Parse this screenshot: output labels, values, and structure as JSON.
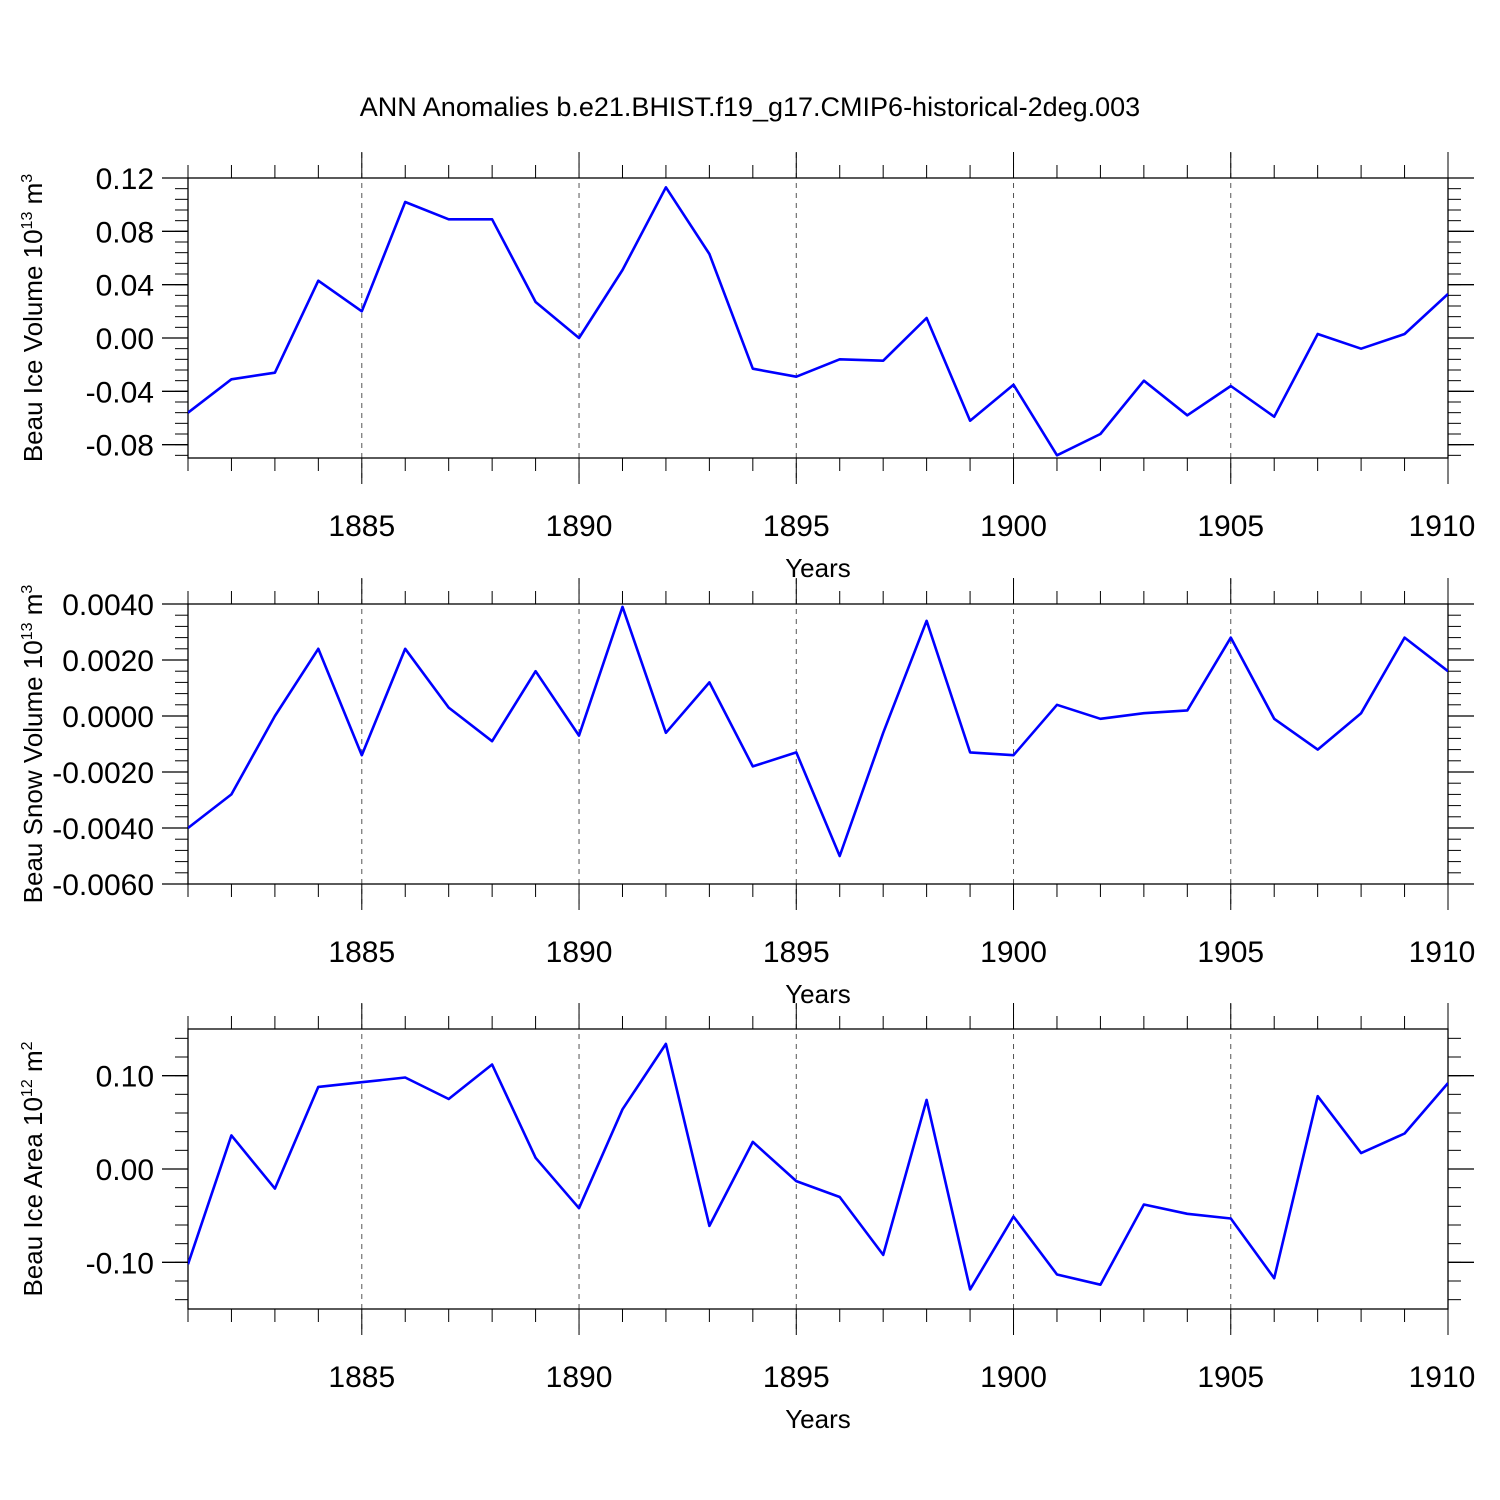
{
  "title": "ANN Anomalies b.e21.BHIST.f19_g17.CMIP6-historical-2deg.003",
  "line_color": "#0000ff",
  "chart_data": [
    {
      "type": "line",
      "ylabel": {
        "text": "Beau Ice Volume 10",
        "exp": "13",
        "unit": " m",
        "unit_exp": "3"
      },
      "xlabel": "Years",
      "xlim": [
        1881,
        1910
      ],
      "ylim": [
        -0.09,
        0.12
      ],
      "yticks": [
        0.12,
        0.08,
        0.04,
        0.0,
        -0.04,
        -0.08
      ],
      "ytick_labels": [
        "0.12",
        "0.08",
        "0.04",
        "0.00",
        "-0.04",
        "-0.08"
      ],
      "yminor_step": 0.008,
      "xticks": [
        1885,
        1890,
        1895,
        1900,
        1905,
        1910
      ],
      "x": [
        1881,
        1882,
        1883,
        1884,
        1885,
        1886,
        1887,
        1888,
        1889,
        1890,
        1891,
        1892,
        1893,
        1894,
        1895,
        1896,
        1897,
        1898,
        1899,
        1900,
        1901,
        1902,
        1903,
        1904,
        1905,
        1906,
        1907,
        1908,
        1909,
        1910
      ],
      "values": [
        -0.056,
        -0.031,
        -0.026,
        0.043,
        0.02,
        0.102,
        0.089,
        0.089,
        0.027,
        0.0,
        0.051,
        0.113,
        0.063,
        -0.023,
        -0.029,
        -0.016,
        -0.017,
        0.015,
        -0.062,
        -0.035,
        -0.088,
        -0.072,
        -0.032,
        -0.058,
        -0.036,
        -0.059,
        0.003,
        -0.008,
        0.003,
        0.033
      ]
    },
    {
      "type": "line",
      "ylabel": {
        "text": "Beau Snow Volume 10",
        "exp": "13",
        "unit": " m",
        "unit_exp": "3"
      },
      "xlabel": "Years",
      "xlim": [
        1881,
        1910
      ],
      "ylim": [
        -0.006,
        0.004
      ],
      "yticks": [
        0.004,
        0.002,
        0.0,
        -0.002,
        -0.004,
        -0.006
      ],
      "ytick_labels": [
        "0.0040",
        "0.0020",
        "0.0000",
        "-0.0020",
        "-0.0040",
        "-0.0060"
      ],
      "yminor_step": 0.0004,
      "xticks": [
        1885,
        1890,
        1895,
        1900,
        1905,
        1910
      ],
      "x": [
        1881,
        1882,
        1883,
        1884,
        1885,
        1886,
        1887,
        1888,
        1889,
        1890,
        1891,
        1892,
        1893,
        1894,
        1895,
        1896,
        1897,
        1898,
        1899,
        1900,
        1901,
        1902,
        1903,
        1904,
        1905,
        1906,
        1907,
        1908,
        1909,
        1910
      ],
      "values": [
        -0.004,
        -0.0028,
        0.0,
        0.0024,
        -0.0014,
        0.0024,
        0.0003,
        -0.0009,
        0.0016,
        -0.0007,
        0.0039,
        -0.0006,
        0.0012,
        -0.0018,
        -0.0013,
        -0.005,
        -0.0006,
        0.0034,
        -0.0013,
        -0.0014,
        0.0004,
        -0.0001,
        0.0001,
        0.0002,
        0.0028,
        -0.0001,
        -0.0012,
        0.0001,
        0.0028,
        0.0016
      ]
    },
    {
      "type": "line",
      "ylabel": {
        "text": "Beau Ice Area 10",
        "exp": "12",
        "unit": " m",
        "unit_exp": "2"
      },
      "xlabel": "Years",
      "xlim": [
        1881,
        1910
      ],
      "ylim": [
        -0.15,
        0.15
      ],
      "yticks": [
        0.1,
        0.0,
        -0.1
      ],
      "ytick_labels": [
        "0.10",
        "0.00",
        "-0.10"
      ],
      "yminor_step": 0.02,
      "xticks": [
        1885,
        1890,
        1895,
        1900,
        1905,
        1910
      ],
      "x": [
        1881,
        1882,
        1883,
        1884,
        1885,
        1886,
        1887,
        1888,
        1889,
        1890,
        1891,
        1892,
        1893,
        1894,
        1895,
        1896,
        1897,
        1898,
        1899,
        1900,
        1901,
        1902,
        1903,
        1904,
        1905,
        1906,
        1907,
        1908,
        1909,
        1910
      ],
      "values": [
        -0.102,
        0.036,
        -0.021,
        0.088,
        0.093,
        0.098,
        0.075,
        0.112,
        0.012,
        -0.042,
        0.064,
        0.134,
        -0.061,
        0.029,
        -0.013,
        -0.03,
        -0.092,
        0.074,
        -0.129,
        -0.051,
        -0.113,
        -0.124,
        -0.038,
        -0.048,
        -0.053,
        -0.117,
        0.078,
        0.017,
        0.038,
        0.092
      ]
    }
  ]
}
